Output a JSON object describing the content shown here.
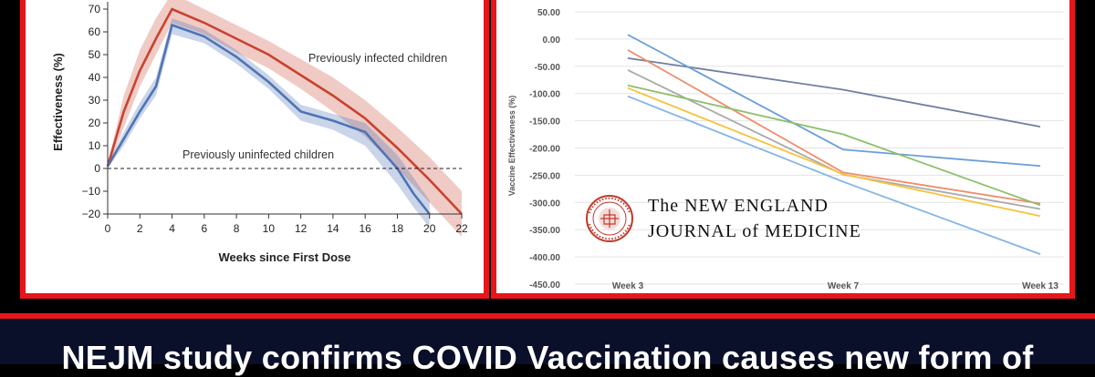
{
  "chart_data": [
    {
      "type": "line",
      "title": "",
      "xlabel": "Weeks since First Dose",
      "ylabel": "Effectiveness (%)",
      "xlim": [
        0,
        22
      ],
      "ylim": [
        -20,
        70
      ],
      "xticks": [
        0,
        2,
        4,
        6,
        8,
        10,
        12,
        14,
        16,
        18,
        20,
        22
      ],
      "yticks": [
        -20,
        -10,
        0,
        10,
        20,
        30,
        40,
        50,
        60,
        70
      ],
      "reference_line": 0,
      "annotations": [
        "Previously infected children",
        "Previously uninfected children"
      ],
      "series": [
        {
          "name": "Previously infected children",
          "color": "#c8432f",
          "x": [
            0,
            1,
            2,
            3,
            4,
            6,
            8,
            10,
            12,
            14,
            16,
            18,
            20,
            22
          ],
          "values": [
            1,
            25,
            43,
            57,
            70,
            64,
            57,
            50,
            41,
            32,
            22,
            9,
            -5,
            -20
          ],
          "ci_low": [
            0,
            18,
            36,
            50,
            64,
            59,
            51,
            44,
            35,
            25,
            14,
            0,
            -15,
            -30
          ],
          "ci_high": [
            2,
            32,
            52,
            66,
            77,
            70,
            63,
            56,
            48,
            40,
            30,
            18,
            5,
            -10
          ]
        },
        {
          "name": "Previously uninfected children",
          "color": "#4f74b5",
          "x": [
            0,
            1,
            2,
            3,
            4,
            6,
            8,
            10,
            12,
            14,
            16,
            18,
            19,
            20
          ],
          "values": [
            1,
            13,
            25,
            36,
            63,
            58,
            49,
            38,
            25,
            21,
            16,
            0,
            -11,
            -20
          ],
          "ci_low": [
            0,
            10,
            22,
            32,
            59,
            55,
            46,
            35,
            21,
            17,
            10,
            -7,
            -17,
            -26
          ],
          "ci_high": [
            2,
            16,
            29,
            40,
            66,
            61,
            52,
            41,
            28,
            24,
            20,
            6,
            -4,
            -14
          ]
        }
      ]
    },
    {
      "type": "line",
      "title": "",
      "xlabel": "",
      "ylabel": "Vaccine Effectiveness (%)",
      "categories": [
        "Week 3",
        "Week 7",
        "Week 13"
      ],
      "ylim": [
        -450,
        50
      ],
      "yticks": [
        "50.00",
        "0.00",
        "-50.00",
        "-100.00",
        "-150.00",
        "-200.00",
        "-250.00",
        "-300.00",
        "-350.00",
        "-400.00",
        "-450.00"
      ],
      "series": [
        {
          "color": "#6f7fa0",
          "values": [
            -35,
            -93,
            -161
          ]
        },
        {
          "color": "#6a9ed8",
          "values": [
            8,
            -203,
            -233
          ]
        },
        {
          "color": "#f08c6a",
          "values": [
            -20,
            -245,
            -302
          ]
        },
        {
          "color": "#a9a9a9",
          "values": [
            -57,
            -249,
            -312
          ]
        },
        {
          "color": "#8cbf6a",
          "values": [
            -85,
            -175,
            -305
          ]
        },
        {
          "color": "#f7c23c",
          "values": [
            -90,
            -248,
            -325
          ]
        },
        {
          "color": "#86b4e5",
          "values": [
            -105,
            -262,
            -395
          ]
        }
      ]
    }
  ],
  "logo": {
    "line1": "The NEW ENGLAND",
    "line2": "JOURNAL of MEDICINE",
    "seal_text": "MASSACHUSETTS MEDICAL SOCIETY 1812"
  },
  "headline": "NEJM study confirms COVID Vaccination causes new form of"
}
